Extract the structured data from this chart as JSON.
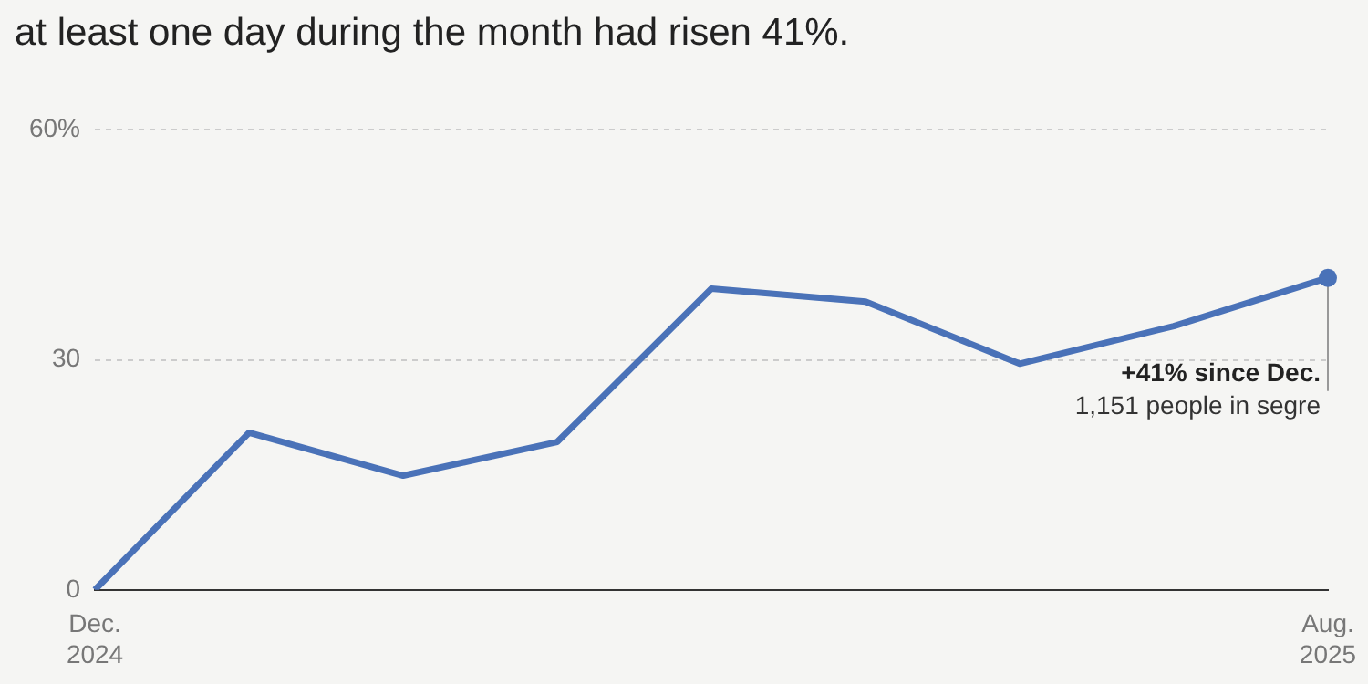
{
  "chart_data": {
    "type": "line",
    "title": "at least one day during the month had risen 41%.",
    "categories": [
      "Dec. 2024",
      null,
      null,
      null,
      null,
      null,
      null,
      null,
      "Aug. 2025"
    ],
    "series": [
      {
        "color": "#4a72b8",
        "values": [
          0,
          20.5,
          14.9,
          19.3,
          39.3,
          37.6,
          29.5,
          34.4,
          40.7
        ]
      }
    ],
    "ylim": [
      0,
      60
    ],
    "yticks": [
      0,
      30,
      {
        "value": 60,
        "label": "60%"
      }
    ],
    "grid": "y",
    "legend": false,
    "marker": "none",
    "line_style": "solid",
    "annotations": [
      {
        "text": "+41% since Dec.",
        "x": "Aug. 2025",
        "y": 40.7
      },
      "1,151 people in segre"
    ]
  }
}
